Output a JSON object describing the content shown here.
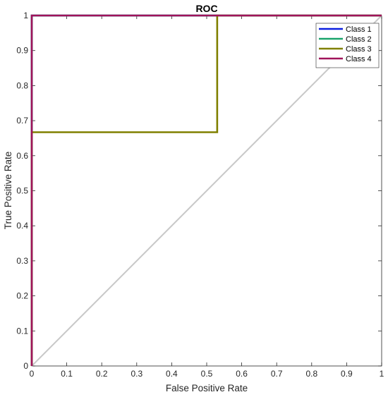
{
  "chart_data": {
    "type": "line",
    "title": "ROC",
    "xlabel": "False Positive Rate",
    "ylabel": "True Positive Rate",
    "xlim": [
      0,
      1
    ],
    "ylim": [
      0,
      1
    ],
    "xticks": [
      "0",
      "0.1",
      "0.2",
      "0.3",
      "0.4",
      "0.5",
      "0.6",
      "0.7",
      "0.8",
      "0.9",
      "1"
    ],
    "yticks": [
      "0",
      "0.1",
      "0.2",
      "0.3",
      "0.4",
      "0.5",
      "0.6",
      "0.7",
      "0.8",
      "0.9",
      "1"
    ],
    "grid": false,
    "legend_position": "top-right",
    "diagonal": {
      "x": [
        0,
        1
      ],
      "y": [
        0,
        1
      ],
      "color": "#c8c8c8"
    },
    "series": [
      {
        "name": "Class 1",
        "color": "#0b1fe0",
        "x": [
          0,
          0,
          1
        ],
        "y": [
          0,
          1,
          1
        ]
      },
      {
        "name": "Class 2",
        "color": "#1aa36b",
        "x": [
          0,
          0,
          1
        ],
        "y": [
          0,
          1,
          1
        ]
      },
      {
        "name": "Class 3",
        "color": "#808000",
        "x": [
          0,
          0,
          0.53,
          0.53,
          1
        ],
        "y": [
          0,
          0.667,
          0.667,
          1,
          1
        ]
      },
      {
        "name": "Class 4",
        "color": "#a0135a",
        "x": [
          0,
          0,
          1
        ],
        "y": [
          0,
          1,
          1
        ]
      }
    ]
  }
}
